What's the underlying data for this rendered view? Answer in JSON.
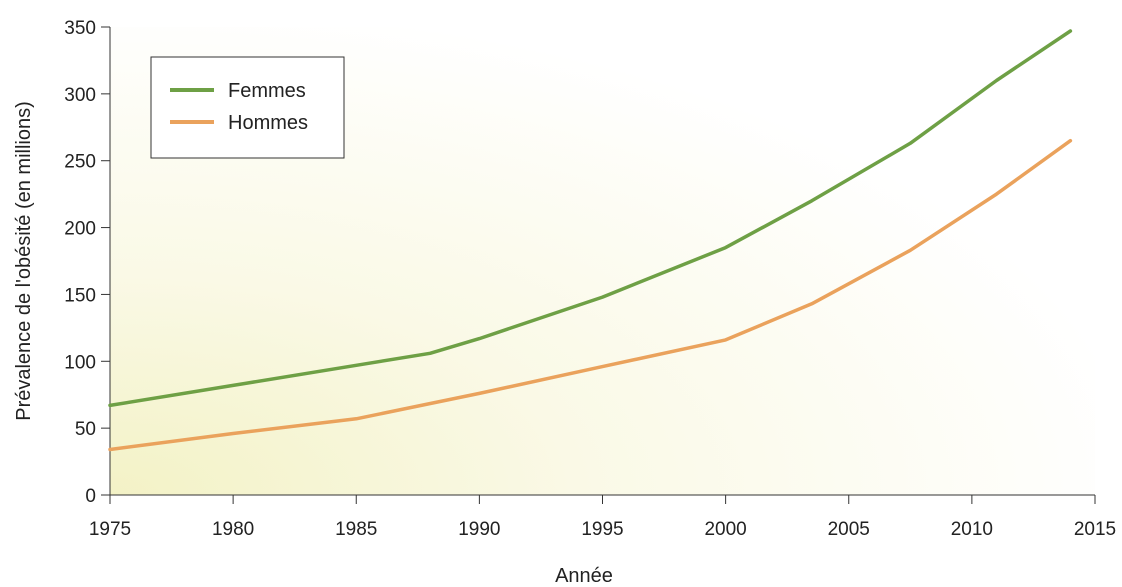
{
  "chart_data": {
    "type": "line",
    "title": "",
    "xlabel": "Année",
    "ylabel": "Prévalence de l'obésité (en millions)",
    "xlim": [
      1975,
      2015
    ],
    "ylim": [
      0,
      350
    ],
    "xticks": [
      1975,
      1980,
      1985,
      1990,
      1995,
      2000,
      2005,
      2010,
      2015
    ],
    "yticks": [
      0,
      50,
      100,
      150,
      200,
      250,
      300,
      350
    ],
    "grid": false,
    "legend_position": "top-left",
    "series": [
      {
        "name": "Femmes",
        "color": "#6ea045",
        "x": [
          1975,
          1980,
          1985,
          1988,
          1990,
          1995,
          2000,
          2003.5,
          2007.5,
          2011,
          2014
        ],
        "y": [
          67,
          82,
          97,
          106,
          117,
          148,
          185,
          220,
          263,
          310,
          347
        ]
      },
      {
        "name": "Hommes",
        "color": "#eaa25c",
        "x": [
          1975,
          1980,
          1985,
          1990,
          1995,
          2000,
          2003.5,
          2007.5,
          2011,
          2014
        ],
        "y": [
          34,
          46,
          57,
          76,
          96,
          116,
          143,
          183,
          225,
          265
        ]
      }
    ]
  }
}
